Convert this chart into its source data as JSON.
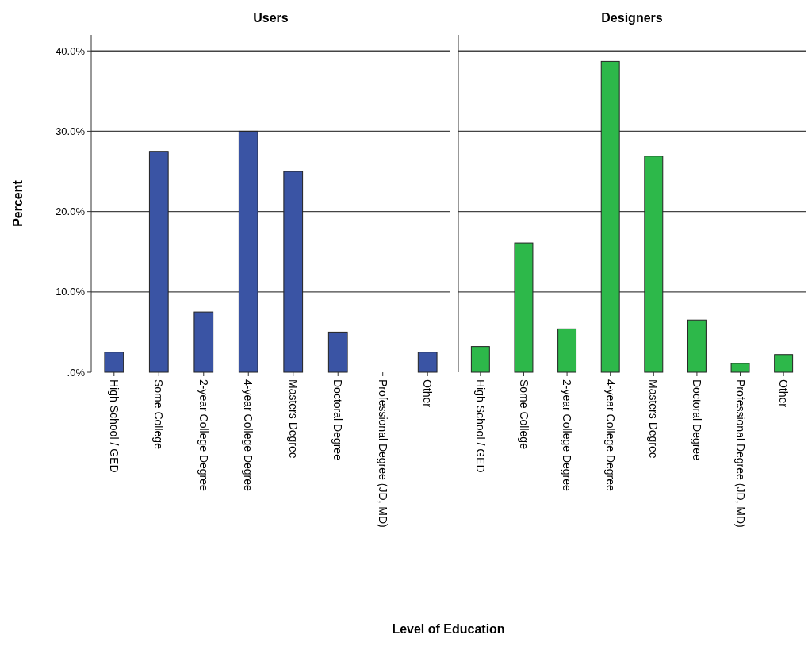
{
  "chart_data": [
    {
      "type": "bar",
      "title": "Users",
      "xlabel": "Level of Education",
      "ylabel": "Percent",
      "categories": [
        "High School / GED",
        "Some College",
        "2-year College Degree",
        "4-year College Degree",
        "Masters Degree",
        "Doctoral Degree",
        "Professional Degree (JD, MD)",
        "Other"
      ],
      "series": [
        {
          "color": "#3a54a4",
          "values": [
            2.5,
            27.5,
            7.5,
            30,
            25,
            5,
            0,
            2.5
          ]
        }
      ],
      "ylim": [
        0,
        42
      ],
      "yticks": [
        {
          "value": 0,
          "label": ".0%"
        },
        {
          "value": 10,
          "label": "10.0%"
        },
        {
          "value": 20,
          "label": "20.0%"
        },
        {
          "value": 30,
          "label": "30.0%"
        },
        {
          "value": 40,
          "label": "40.0%"
        }
      ],
      "grid": "y"
    },
    {
      "type": "bar",
      "title": "Designers",
      "categories": [
        "High School / GED",
        "Some College",
        "2-year College Degree",
        "4-year College Degree",
        "Masters Degree",
        "Doctoral Degree",
        "Professional Degree (JD, MD)",
        "Other"
      ],
      "series": [
        {
          "color": "#2db84a",
          "values": [
            3.2,
            16.1,
            5.4,
            38.7,
            26.9,
            6.5,
            1.1,
            2.2
          ]
        }
      ],
      "ylim": [
        0,
        42
      ],
      "yticks": [
        {
          "value": 0,
          "label": null
        },
        {
          "value": 10,
          "label": null
        },
        {
          "value": 20,
          "label": null
        },
        {
          "value": 30,
          "label": null
        },
        {
          "value": 40,
          "label": null
        }
      ],
      "grid": "y",
      "tick_labels": "x"
    }
  ]
}
